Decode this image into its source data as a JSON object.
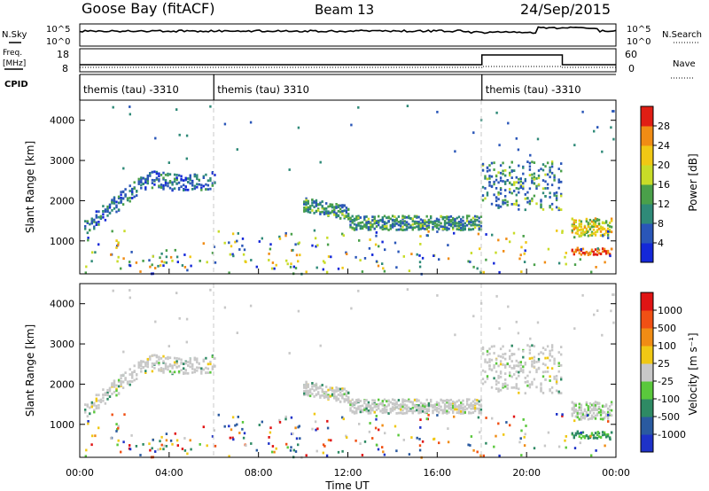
{
  "header": {
    "station": "Goose Bay (fitACF)",
    "beam": "Beam 13",
    "date": "24/Sep/2015"
  },
  "strips": {
    "nsky_label": "N.Sky",
    "nsearch_label": "N.Search",
    "freq_label_line1": "Freq.",
    "freq_label_line2": "[MHz]",
    "nave_label": "Nave",
    "cpid_label": "CPID",
    "noise_ticks_left": [
      "10^5",
      "10^0"
    ],
    "noise_ticks_right": [
      "10^5",
      "10^0"
    ],
    "freq_ticks": [
      "18",
      "8"
    ],
    "nave_ticks": [
      "60",
      "0"
    ],
    "cpid_segments": [
      {
        "label": "themis (tau) -3310",
        "start_hour": 0,
        "end_hour": 6
      },
      {
        "label": "themis (tau) 3310",
        "start_hour": 6,
        "end_hour": 18
      },
      {
        "label": "themis (tau) -3310",
        "start_hour": 18,
        "end_hour": 24
      }
    ]
  },
  "axes": {
    "ylabel": "Slant Range [km]",
    "xlabel": "Time UT",
    "x_ticks": [
      "00:00",
      "04:00",
      "08:00",
      "12:00",
      "16:00",
      "20:00",
      "00:00"
    ],
    "y_ticks": [
      "1000",
      "2000",
      "3000",
      "4000"
    ]
  },
  "colorbars": {
    "power": {
      "label": "Power [dB]",
      "ticks": [
        "4",
        "8",
        "12",
        "16",
        "20",
        "24",
        "28"
      ],
      "colors": [
        "#1428d8",
        "#2a56b8",
        "#2f8a78",
        "#4aa04a",
        "#c8dc28",
        "#f0c814",
        "#f08c14",
        "#e01e14"
      ]
    },
    "velocity": {
      "label": "Velocity [m s⁻¹]",
      "ticks": [
        "1000",
        "500",
        "100",
        "25",
        "-25",
        "-100",
        "-500",
        "-1000"
      ],
      "colors": [
        "#1e32c8",
        "#2a5aa0",
        "#2e8a64",
        "#5ac83c",
        "#c8c8c8",
        "#f0c814",
        "#f08c14",
        "#f05014",
        "#e01414"
      ]
    }
  },
  "chart_data": [
    {
      "type": "heatmap",
      "title": "Power",
      "x_range_hours": [
        0,
        24
      ],
      "y_range_km": [
        180,
        4500
      ],
      "regions": [
        {
          "from_hour": 0.2,
          "to_hour": 6.0,
          "range_km": [
            1000,
            2800
          ],
          "dominant_db": 8
        },
        {
          "from_hour": 10.0,
          "to_hour": 18.0,
          "range_km": [
            1250,
            2000
          ],
          "dominant_db": 14
        },
        {
          "from_hour": 18.0,
          "to_hour": 21.6,
          "range_km": [
            1700,
            3000
          ],
          "dominant_db": 10
        },
        {
          "from_hour": 22.0,
          "to_hour": 23.8,
          "range_km": [
            700,
            1500
          ],
          "dominant_db": 20
        },
        {
          "from_hour": 3.0,
          "to_hour": 5.0,
          "range_km": [
            300,
            800
          ],
          "dominant_db": 18
        }
      ]
    },
    {
      "type": "heatmap",
      "title": "Velocity",
      "x_range_hours": [
        0,
        24
      ],
      "y_range_km": [
        180,
        4500
      ],
      "regions": [
        {
          "from_hour": 0.2,
          "to_hour": 6.0,
          "range_km": [
            1000,
            2800
          ],
          "dominant_ms": 0
        },
        {
          "from_hour": 10.0,
          "to_hour": 18.0,
          "range_km": [
            1250,
            2000
          ],
          "dominant_ms": 0
        },
        {
          "from_hour": 18.0,
          "to_hour": 21.6,
          "range_km": [
            1700,
            3000
          ],
          "dominant_ms": 0
        },
        {
          "from_hour": 22.0,
          "to_hour": 23.8,
          "range_km": [
            700,
            1500
          ],
          "dominant_ms": 0
        },
        {
          "from_hour": 3.0,
          "to_hour": 5.0,
          "range_km": [
            300,
            800
          ],
          "dominant_ms": -200
        }
      ]
    }
  ]
}
